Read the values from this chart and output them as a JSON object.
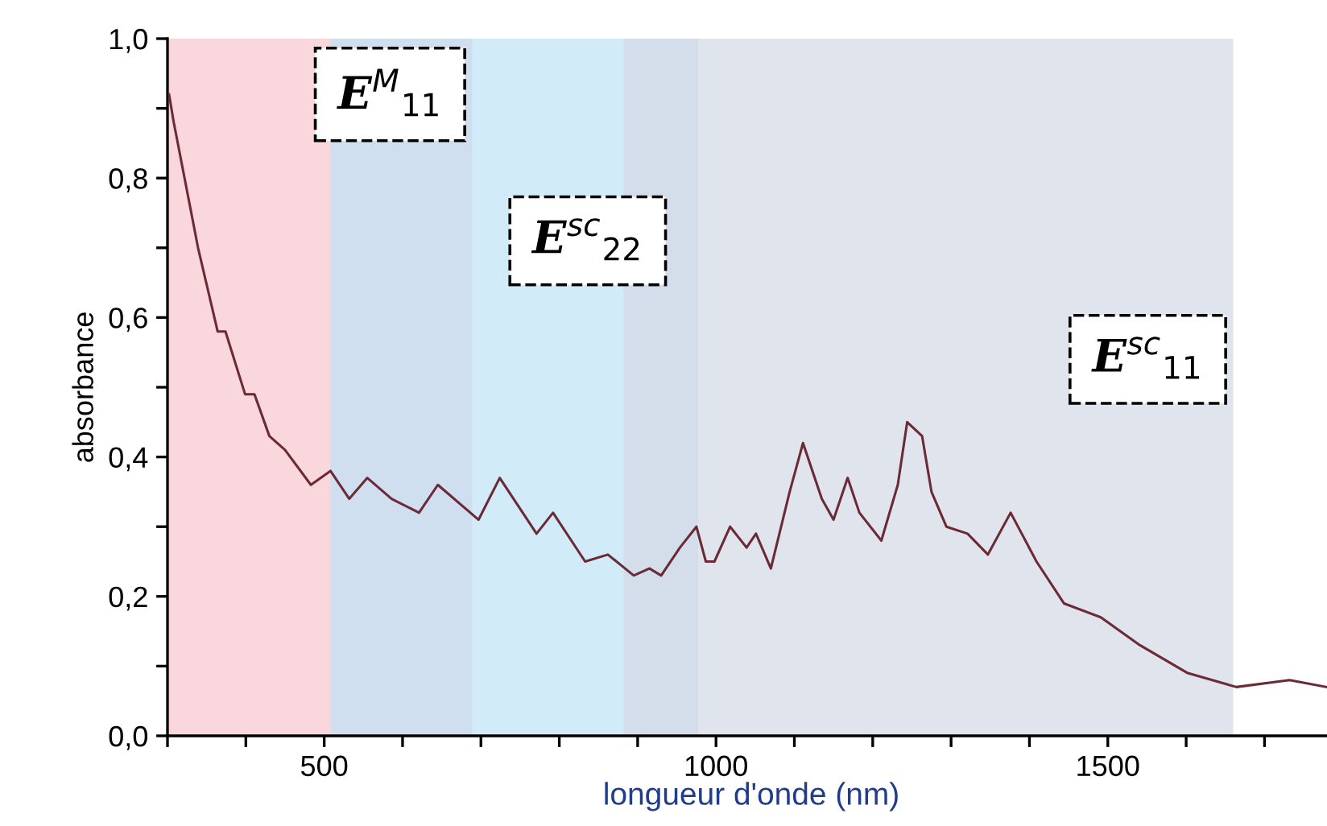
{
  "chart_data": {
    "type": "line",
    "xlabel": "longueur d'onde (nm)",
    "ylabel": "absorbance",
    "x": [
      302,
      308,
      339,
      364,
      374,
      399,
      411,
      430,
      450,
      483,
      508,
      532,
      555,
      586,
      621,
      645,
      697,
      724,
      771,
      792,
      833,
      862,
      895,
      915,
      930,
      954,
      975,
      987,
      998,
      1018,
      1039,
      1051,
      1070,
      1094,
      1111,
      1135,
      1150,
      1168,
      1183,
      1211,
      1232,
      1244,
      1263,
      1275,
      1294,
      1321,
      1347,
      1376,
      1409,
      1444,
      1491,
      1541,
      1602,
      1664,
      1732,
      1779
    ],
    "series": [
      {
        "color": "#6b2a35",
        "values": [
          0.92,
          0.88,
          0.7,
          0.58,
          0.58,
          0.49,
          0.49,
          0.43,
          0.41,
          0.36,
          0.38,
          0.34,
          0.37,
          0.34,
          0.32,
          0.36,
          0.31,
          0.37,
          0.29,
          0.32,
          0.25,
          0.26,
          0.23,
          0.24,
          0.23,
          0.27,
          0.3,
          0.25,
          0.25,
          0.3,
          0.27,
          0.29,
          0.24,
          0.35,
          0.42,
          0.34,
          0.31,
          0.37,
          0.32,
          0.28,
          0.36,
          0.45,
          0.43,
          0.35,
          0.3,
          0.29,
          0.26,
          0.32,
          0.25,
          0.19,
          0.17,
          0.13,
          0.09,
          0.07,
          0.08,
          0.07
        ]
      }
    ],
    "xlim": [
      300,
      1790
    ],
    "ylim": [
      0,
      1.0
    ],
    "xticks": [
      {
        "value": 300,
        "label": null
      },
      {
        "value": 400,
        "label": null
      },
      500,
      {
        "value": 600,
        "label": null
      },
      {
        "value": 700,
        "label": null
      },
      {
        "value": 800,
        "label": null
      },
      {
        "value": 900,
        "label": null
      },
      1000,
      {
        "value": 1100,
        "label": null
      },
      {
        "value": 1200,
        "label": null
      },
      {
        "value": 1300,
        "label": null
      },
      {
        "value": 1400,
        "label": null
      },
      1500,
      {
        "value": 1600,
        "label": null
      },
      {
        "value": 1700,
        "label": null
      }
    ],
    "yticks": [
      {
        "value": 0,
        "label": "0,0"
      },
      {
        "value": 0.1,
        "label": null
      },
      {
        "value": 0.2,
        "label": "0,2"
      },
      {
        "value": 0.3,
        "label": null
      },
      {
        "value": 0.4,
        "label": "0,4"
      },
      {
        "value": 0.5,
        "label": null
      },
      {
        "value": 0.6,
        "label": "0,6"
      },
      {
        "value": 0.7,
        "label": null
      },
      {
        "value": 0.8,
        "label": "0,8"
      },
      {
        "value": 0.9,
        "label": null
      },
      {
        "value": 1.0,
        "label": "1,0"
      }
    ],
    "bands": [
      {
        "axis": "x",
        "from": 300,
        "to": 689,
        "color": "#f7c6cf",
        "label": "E$^{M}$$_{11}$"
      },
      {
        "axis": "x",
        "from": 508,
        "to": 977,
        "color": "#bfe3f7",
        "label": "E$^{sc}$$_{22}$"
      },
      {
        "axis": "x",
        "from": 882,
        "to": 1660,
        "color": "#d3d8e4",
        "label": "E$^{sc}$$_{11}$"
      }
    ],
    "grid": false,
    "legend": false,
    "marker": "none",
    "line_style": "solid"
  }
}
